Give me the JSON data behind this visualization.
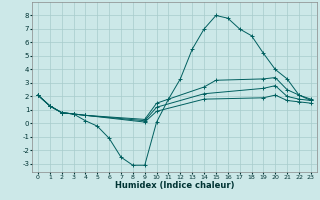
{
  "xlabel": "Humidex (Indice chaleur)",
  "background_color": "#cce8e8",
  "grid_color": "#a8cccc",
  "line_color": "#005f5f",
  "xlim": [
    -0.5,
    23.5
  ],
  "ylim": [
    -3.6,
    9.0
  ],
  "yticks": [
    -3,
    -2,
    -1,
    0,
    1,
    2,
    3,
    4,
    5,
    6,
    7,
    8
  ],
  "xticks": [
    0,
    1,
    2,
    3,
    4,
    5,
    6,
    7,
    8,
    9,
    10,
    11,
    12,
    13,
    14,
    15,
    16,
    17,
    18,
    19,
    20,
    21,
    22,
    23
  ],
  "series1_x": [
    0,
    1,
    2,
    3,
    4,
    5,
    6,
    7,
    8,
    9,
    10,
    11,
    12,
    13,
    14,
    15,
    16,
    17,
    18,
    19,
    20,
    21,
    22,
    23
  ],
  "series1_y": [
    2.1,
    1.3,
    0.8,
    0.7,
    0.2,
    -0.2,
    -1.1,
    -2.5,
    -3.1,
    -3.1,
    0.1,
    1.8,
    3.3,
    5.5,
    7.0,
    8.0,
    7.8,
    7.0,
    6.5,
    5.2,
    4.0,
    3.3,
    2.1,
    1.8
  ],
  "series2_x": [
    0,
    1,
    2,
    3,
    4,
    9,
    10,
    14,
    15,
    19,
    20,
    21,
    22,
    23
  ],
  "series2_y": [
    2.1,
    1.3,
    0.8,
    0.7,
    0.6,
    0.3,
    1.5,
    2.7,
    3.2,
    3.3,
    3.4,
    2.5,
    2.1,
    1.7
  ],
  "series3_x": [
    0,
    1,
    2,
    3,
    4,
    9,
    10,
    14,
    19,
    20,
    21,
    22,
    23
  ],
  "series3_y": [
    2.1,
    1.3,
    0.8,
    0.7,
    0.6,
    0.2,
    1.2,
    2.2,
    2.6,
    2.8,
    2.0,
    1.8,
    1.7
  ],
  "series4_x": [
    0,
    1,
    2,
    3,
    4,
    9,
    10,
    14,
    19,
    20,
    21,
    22,
    23
  ],
  "series4_y": [
    2.1,
    1.3,
    0.8,
    0.7,
    0.6,
    0.1,
    0.9,
    1.8,
    1.9,
    2.1,
    1.7,
    1.6,
    1.5
  ]
}
